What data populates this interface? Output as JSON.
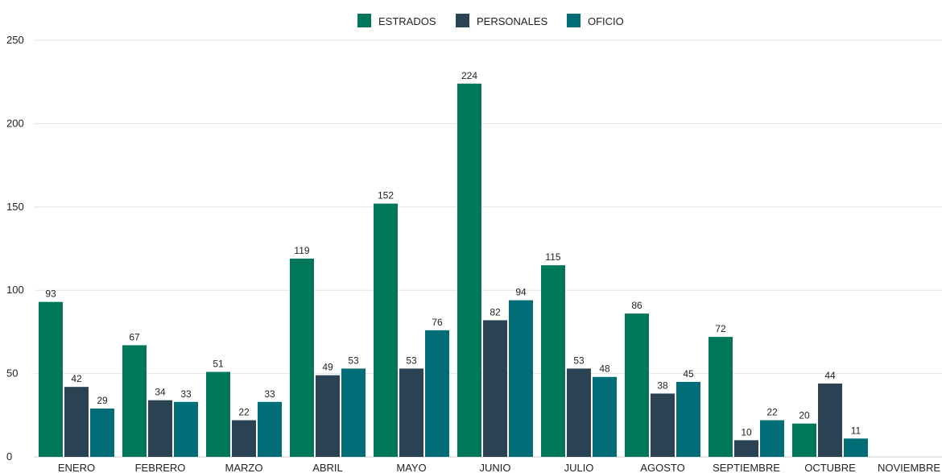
{
  "chart_data": {
    "type": "bar",
    "categories": [
      "ENERO",
      "FEBRERO",
      "MARZO",
      "ABRIL",
      "MAYO",
      "JUNIO",
      "JULIO",
      "AGOSTO",
      "SEPTIEMBRE",
      "OCTUBRE",
      "NOVIEMBRE"
    ],
    "series": [
      {
        "name": "ESTRADOS",
        "color": "#00775a",
        "values": [
          93,
          67,
          51,
          119,
          152,
          224,
          115,
          86,
          72,
          20,
          null
        ]
      },
      {
        "name": "PERSONALES",
        "color": "#2b4252",
        "values": [
          42,
          34,
          22,
          49,
          53,
          82,
          53,
          38,
          10,
          44,
          null
        ]
      },
      {
        "name": "OFICIO",
        "color": "#006d77",
        "values": [
          29,
          33,
          33,
          53,
          76,
          94,
          48,
          45,
          22,
          11,
          null
        ]
      }
    ],
    "yticks": [
      0,
      50,
      100,
      150,
      200,
      250
    ],
    "ylim": [
      0,
      250
    ],
    "grid": true,
    "legend_position": "top-center",
    "data_labels": true
  }
}
